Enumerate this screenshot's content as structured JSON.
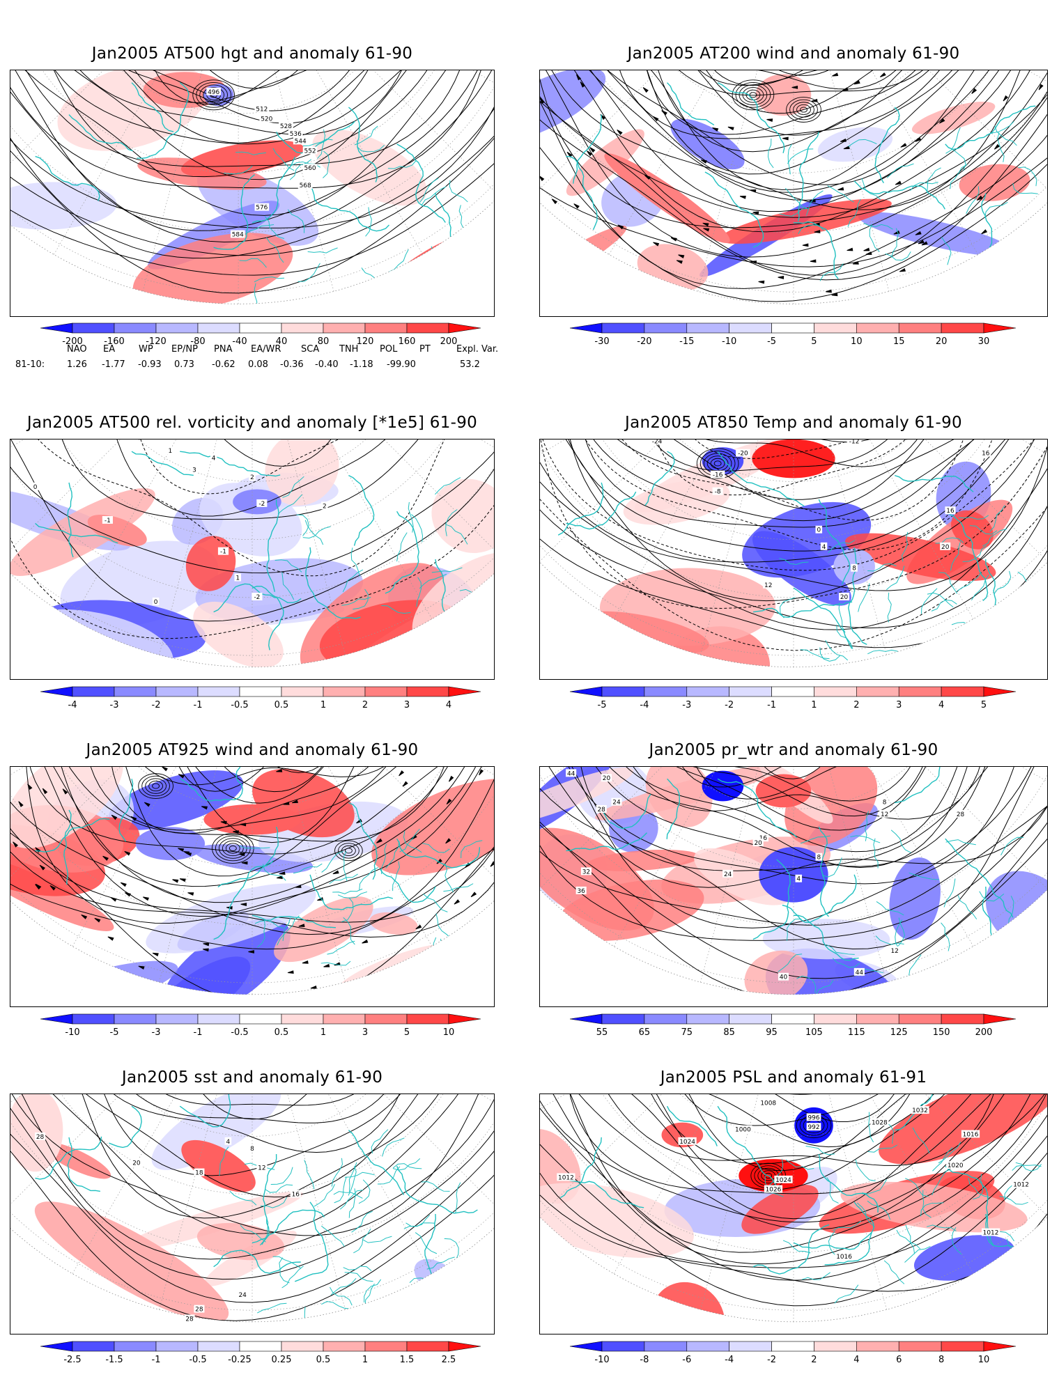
{
  "panels": [
    {
      "id": "p1",
      "title": "Jan2005 AT500 hgt and anomaly 61-90",
      "ticks": [
        "-200",
        "-160",
        "-120",
        "-80",
        "-40",
        "40",
        "80",
        "120",
        "160",
        "200"
      ],
      "contour_labels": [
        "496",
        "512",
        "520",
        "528",
        "536",
        "544",
        "552",
        "560",
        "568",
        "576",
        "584"
      ]
    },
    {
      "id": "p2",
      "title": "Jan2005 AT200 wind and anomaly 61-90",
      "ticks": [
        "-30",
        "-20",
        "-15",
        "-10",
        "-5",
        "5",
        "10",
        "15",
        "20",
        "30"
      ],
      "contour_labels": []
    },
    {
      "id": "p3",
      "title": "Jan2005 AT500 rel. vorticity and anomaly [*1e5] 61-90",
      "ticks": [
        "-4",
        "-3",
        "-2",
        "-1",
        "-0.5",
        "0.5",
        "1",
        "2",
        "3",
        "4"
      ],
      "contour_labels": [
        "1",
        "2",
        "4",
        "3",
        "-1",
        "-2",
        "0",
        "2",
        "1",
        "-1",
        "0",
        "-2"
      ]
    },
    {
      "id": "p4",
      "title": "Jan2005 AT850 Temp and anomaly 61-90",
      "ticks": [
        "-5",
        "-4",
        "-3",
        "-2",
        "-1",
        "1",
        "2",
        "3",
        "4",
        "5"
      ],
      "contour_labels": [
        "-24",
        "-16",
        "-8",
        "-12",
        "-20",
        "16",
        "0",
        "8",
        "4",
        "12",
        "20",
        "16",
        "20"
      ]
    },
    {
      "id": "p5",
      "title": "Jan2005 AT925 wind and anomaly 61-90",
      "ticks": [
        "-10",
        "-5",
        "-3",
        "-1",
        "-0.5",
        "0.5",
        "1",
        "3",
        "5",
        "10"
      ],
      "contour_labels": []
    },
    {
      "id": "p6",
      "title": "Jan2005 pr_wtr and anomaly 61-90",
      "ticks": [
        "55",
        "65",
        "75",
        "85",
        "95",
        "105",
        "115",
        "125",
        "150",
        "200"
      ],
      "contour_labels": [
        "44",
        "20",
        "24",
        "28",
        "8",
        "12",
        "16",
        "4",
        "8",
        "24",
        "36",
        "40",
        "44",
        "28",
        "32",
        "20",
        "12"
      ]
    },
    {
      "id": "p7",
      "title": "Jan2005 sst and anomaly 61-90",
      "ticks": [
        "-2.5",
        "-1.5",
        "-1",
        "-0.5",
        "-0.25",
        "0.25",
        "0.5",
        "1",
        "1.5",
        "2.5"
      ],
      "contour_labels": [
        "28",
        "20",
        "18",
        "12",
        "4",
        "8",
        "16",
        "24",
        "28",
        "28"
      ]
    },
    {
      "id": "p8",
      "title": "Jan2005 PSL and anomaly 61-91",
      "ticks": [
        "-10",
        "-8",
        "-6",
        "-4",
        "-2",
        "2",
        "4",
        "6",
        "8",
        "10"
      ],
      "contour_labels": [
        "1008",
        "1024",
        "996",
        "992",
        "1000",
        "1028",
        "1032",
        "1016",
        "1020",
        "1012",
        "1024",
        "1026",
        "1016",
        "1012",
        "1012"
      ]
    }
  ],
  "teleconnections": {
    "header": [
      "NAO",
      "EA",
      "WP",
      "EP/NP",
      "PNA",
      "EA/WR",
      "SCA",
      "TNH",
      "POL",
      "PT",
      "Expl. Var."
    ],
    "row_label": "81-10:",
    "values": [
      "1.26",
      "-1.77",
      "-0.93",
      "0.73",
      "-0.62",
      "0.08",
      "-0.36",
      "-0.40",
      "-1.18",
      "-99.90",
      "53.2"
    ]
  },
  "colors": {
    "coast": "#20c0c0",
    "neg": [
      "#1010ff",
      "#5050ff",
      "#8a8aff",
      "#b8b8ff",
      "#dcdcff"
    ],
    "pos": [
      "#ffdcdc",
      "#ffb0b0",
      "#ff8080",
      "#ff4848",
      "#ff1010"
    ]
  }
}
